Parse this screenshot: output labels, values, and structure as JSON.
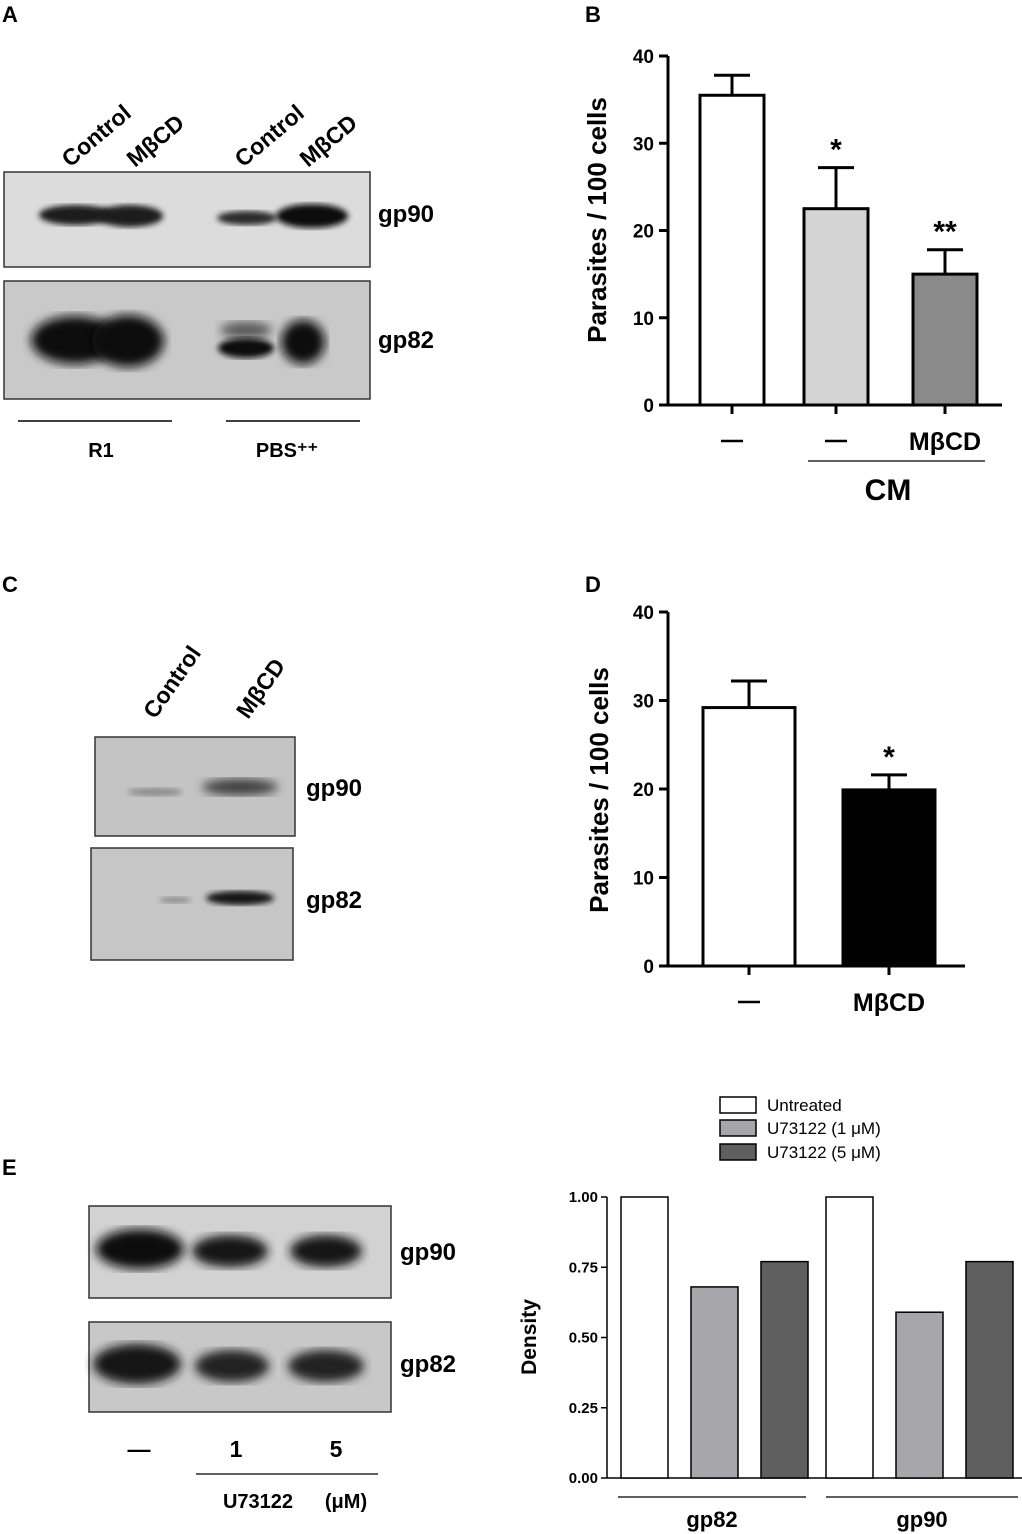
{
  "panels": {
    "a": {
      "letter": "A",
      "lanes": [
        "Control",
        "MβCD",
        "Control",
        "MβCD"
      ],
      "bands": [
        "gp90",
        "gp82"
      ],
      "groups": [
        "R1",
        "PBS⁺⁺"
      ]
    },
    "b": {
      "letter": "B",
      "group_label": "CM"
    },
    "c": {
      "letter": "C",
      "lanes": [
        "Control",
        "MβCD"
      ],
      "bands": [
        "gp90",
        "gp82"
      ]
    },
    "d": {
      "letter": "D"
    },
    "e": {
      "letter": "E",
      "bands": [
        "gp90",
        "gp82"
      ],
      "lanes": [
        "—",
        "1",
        "5"
      ],
      "treatment_label": "U73122",
      "unit_label": "(μM)"
    }
  },
  "chart_data": [
    {
      "id": "B",
      "type": "bar",
      "ylabel": "Parasites / 100 cells",
      "ylim": [
        0,
        40
      ],
      "yticks": [
        0,
        10,
        20,
        30,
        40
      ],
      "categories": [
        "–",
        "–",
        "MβCD"
      ],
      "values": [
        35.5,
        22.5,
        15.0
      ],
      "errors": [
        2.3,
        4.7,
        2.8
      ],
      "significance": [
        "",
        "*",
        "**"
      ],
      "bar_colors": [
        "#ffffff",
        "#d4d4d4",
        "#8a8a8a"
      ],
      "group_label": "CM",
      "grid": false
    },
    {
      "id": "D",
      "type": "bar",
      "ylabel": "Parasites / 100 cells",
      "ylim": [
        0,
        40
      ],
      "yticks": [
        0,
        10,
        20,
        30,
        40
      ],
      "categories": [
        "–",
        "MβCD"
      ],
      "values": [
        29.2,
        19.9
      ],
      "errors": [
        3.0,
        1.7
      ],
      "significance": [
        "",
        "*"
      ],
      "bar_colors": [
        "#ffffff",
        "#000000"
      ],
      "grid": false
    },
    {
      "id": "E",
      "type": "bar",
      "ylabel": "Density",
      "ylim": [
        0,
        1
      ],
      "yticks": [
        "0.00",
        "0.25",
        "0.50",
        "0.75",
        "1.00"
      ],
      "categories": [
        "gp82",
        "gp90"
      ],
      "series": [
        {
          "name": "Untreated",
          "values": [
            1.0,
            1.0
          ],
          "color": "#ffffff"
        },
        {
          "name": "U73122 (1 μM)",
          "values": [
            0.68,
            0.59
          ],
          "color": "#a7a7ab"
        },
        {
          "name": "U73122 (5 μM)",
          "values": [
            0.77,
            0.77
          ],
          "color": "#5f5f5f"
        }
      ],
      "legend_position": "top",
      "grid": false
    }
  ]
}
